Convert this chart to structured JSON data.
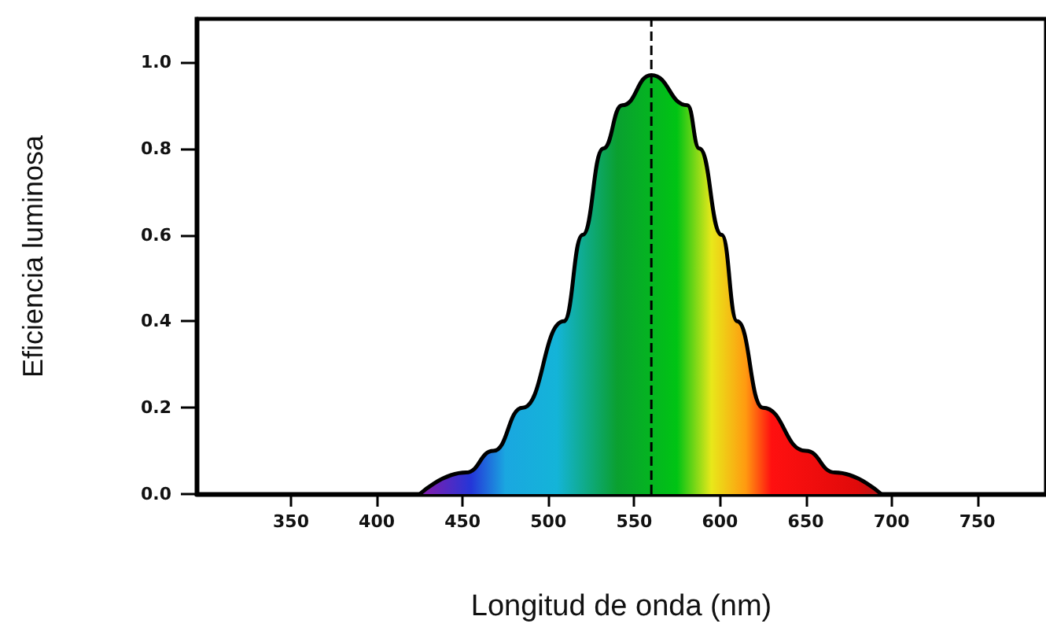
{
  "chart_data": {
    "type": "area",
    "xlabel": "Longitud de onda (nm)",
    "ylabel": "Eficiencia luminosa",
    "x": [
      425,
      452,
      468,
      485,
      509,
      520,
      532,
      543,
      560,
      581,
      588,
      601,
      610,
      625,
      650,
      667,
      694
    ],
    "series": [
      {
        "color": "#000000",
        "values": [
          0,
          0.05,
          0.1,
          0.2,
          0.4,
          0.6,
          0.8,
          0.9,
          0.97,
          0.9,
          0.8,
          0.6,
          0.4,
          0.2,
          0.1,
          0.05,
          0
        ]
      }
    ],
    "xlim": [
      295,
      790
    ],
    "xticks": [
      350,
      400,
      450,
      500,
      550,
      600,
      650,
      700,
      750
    ],
    "ylim": [
      0,
      1.1
    ],
    "yticks": [
      {
        "value": 0,
        "label": "0.0"
      },
      0.2,
      0.4,
      0.6,
      0.8,
      {
        "value": 1,
        "label": "1.0"
      }
    ],
    "ref_lines": [
      {
        "axis": "x",
        "value": 560,
        "color": "#000000",
        "line_style": "dashed"
      }
    ],
    "grid": false,
    "marker": "none"
  }
}
